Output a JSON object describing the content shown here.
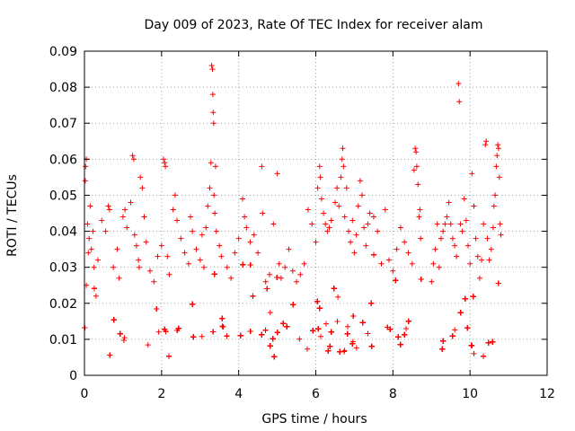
{
  "chart_data": {
    "type": "scatter",
    "title": "Day 009 of 2023, Rate Of TEC Index for receiver alam",
    "xlabel": "GPS time / hours",
    "ylabel": "ROTI / TECUs",
    "xlim": [
      0,
      12
    ],
    "ylim": [
      0,
      0.09
    ],
    "xticks": [
      0,
      2,
      4,
      6,
      8,
      10,
      12
    ],
    "xtick_labels": [
      "0",
      "2",
      "4",
      "6",
      "8",
      "10",
      "12"
    ],
    "yticks": [
      0,
      0.01,
      0.02,
      0.03,
      0.04,
      0.05,
      0.06,
      0.07,
      0.08,
      0.09
    ],
    "ytick_labels": [
      "0",
      "0.01",
      "0.02",
      "0.03",
      "0.04",
      "0.05",
      "0.06",
      "0.07",
      "0.08",
      "0.09"
    ],
    "grid": true,
    "marker": "+",
    "color": "#ff0000",
    "series": [
      {
        "name": "ROTI",
        "points": [
          [
            0.02,
            0.054
          ],
          [
            0.05,
            0.06
          ],
          [
            0.03,
            0.058
          ],
          [
            0.08,
            0.042
          ],
          [
            0.05,
            0.025
          ],
          [
            0.1,
            0.034
          ],
          [
            0.12,
            0.038
          ],
          [
            0.15,
            0.047
          ],
          [
            0.18,
            0.035
          ],
          [
            0.22,
            0.04
          ],
          [
            0.25,
            0.03
          ],
          [
            0.3,
            0.022
          ],
          [
            0.35,
            0.032
          ],
          [
            0.45,
            0.043
          ],
          [
            0.55,
            0.04
          ],
          [
            0.62,
            0.047
          ],
          [
            0.65,
            0.046
          ],
          [
            0.75,
            0.03
          ],
          [
            0.85,
            0.035
          ],
          [
            0.9,
            0.027
          ],
          [
            1.0,
            0.044
          ],
          [
            1.05,
            0.046
          ],
          [
            1.1,
            0.041
          ],
          [
            1.2,
            0.048
          ],
          [
            1.25,
            0.061
          ],
          [
            1.28,
            0.06
          ],
          [
            1.3,
            0.039
          ],
          [
            1.35,
            0.036
          ],
          [
            1.4,
            0.032
          ],
          [
            1.42,
            0.03
          ],
          [
            1.45,
            0.055
          ],
          [
            1.5,
            0.052
          ],
          [
            1.55,
            0.044
          ],
          [
            1.6,
            0.037
          ],
          [
            1.7,
            0.029
          ],
          [
            1.8,
            0.026
          ],
          [
            1.9,
            0.033
          ],
          [
            2.0,
            0.036
          ],
          [
            2.05,
            0.06
          ],
          [
            2.08,
            0.059
          ],
          [
            2.1,
            0.058
          ],
          [
            2.15,
            0.033
          ],
          [
            2.2,
            0.028
          ],
          [
            2.3,
            0.046
          ],
          [
            2.35,
            0.05
          ],
          [
            2.4,
            0.043
          ],
          [
            2.5,
            0.038
          ],
          [
            2.6,
            0.034
          ],
          [
            2.7,
            0.031
          ],
          [
            2.75,
            0.044
          ],
          [
            2.8,
            0.04
          ],
          [
            2.9,
            0.035
          ],
          [
            3.0,
            0.032
          ],
          [
            3.05,
            0.039
          ],
          [
            3.1,
            0.03
          ],
          [
            3.15,
            0.041
          ],
          [
            3.2,
            0.047
          ],
          [
            3.25,
            0.052
          ],
          [
            3.28,
            0.059
          ],
          [
            3.3,
            0.086
          ],
          [
            3.32,
            0.085
          ],
          [
            3.33,
            0.078
          ],
          [
            3.34,
            0.073
          ],
          [
            3.35,
            0.07
          ],
          [
            3.36,
            0.05
          ],
          [
            3.38,
            0.045
          ],
          [
            3.4,
            0.058
          ],
          [
            3.42,
            0.04
          ],
          [
            3.5,
            0.036
          ],
          [
            3.55,
            0.033
          ],
          [
            3.7,
            0.03
          ],
          [
            3.8,
            0.027
          ],
          [
            3.9,
            0.034
          ],
          [
            4.0,
            0.038
          ],
          [
            4.1,
            0.049
          ],
          [
            4.15,
            0.044
          ],
          [
            4.2,
            0.041
          ],
          [
            4.3,
            0.037
          ],
          [
            4.4,
            0.039
          ],
          [
            4.5,
            0.034
          ],
          [
            4.6,
            0.058
          ],
          [
            4.62,
            0.045
          ],
          [
            4.7,
            0.026
          ],
          [
            4.8,
            0.028
          ],
          [
            4.9,
            0.042
          ],
          [
            5.0,
            0.056
          ],
          [
            5.05,
            0.031
          ],
          [
            5.1,
            0.027
          ],
          [
            5.2,
            0.03
          ],
          [
            5.3,
            0.035
          ],
          [
            5.4,
            0.029
          ],
          [
            5.5,
            0.026
          ],
          [
            5.6,
            0.028
          ],
          [
            5.7,
            0.031
          ],
          [
            5.8,
            0.046
          ],
          [
            5.9,
            0.042
          ],
          [
            6.0,
            0.037
          ],
          [
            6.05,
            0.052
          ],
          [
            6.1,
            0.058
          ],
          [
            6.12,
            0.055
          ],
          [
            6.15,
            0.049
          ],
          [
            6.2,
            0.045
          ],
          [
            6.25,
            0.042
          ],
          [
            6.3,
            0.04
          ],
          [
            6.35,
            0.041
          ],
          [
            6.4,
            0.043
          ],
          [
            6.5,
            0.048
          ],
          [
            6.55,
            0.052
          ],
          [
            6.6,
            0.047
          ],
          [
            6.65,
            0.055
          ],
          [
            6.68,
            0.06
          ],
          [
            6.7,
            0.063
          ],
          [
            6.72,
            0.058
          ],
          [
            6.75,
            0.044
          ],
          [
            6.8,
            0.052
          ],
          [
            6.85,
            0.04
          ],
          [
            6.9,
            0.037
          ],
          [
            6.95,
            0.043
          ],
          [
            7.0,
            0.034
          ],
          [
            7.05,
            0.039
          ],
          [
            7.1,
            0.047
          ],
          [
            7.15,
            0.054
          ],
          [
            7.2,
            0.05
          ],
          [
            7.25,
            0.041
          ],
          [
            7.3,
            0.036
          ],
          [
            7.35,
            0.042
          ],
          [
            7.4,
            0.045
          ],
          [
            7.5,
            0.044
          ],
          [
            7.6,
            0.04
          ],
          [
            7.7,
            0.031
          ],
          [
            7.8,
            0.046
          ],
          [
            7.9,
            0.032
          ],
          [
            8.0,
            0.029
          ],
          [
            8.1,
            0.035
          ],
          [
            8.2,
            0.041
          ],
          [
            8.3,
            0.037
          ],
          [
            8.4,
            0.034
          ],
          [
            8.5,
            0.031
          ],
          [
            8.55,
            0.057
          ],
          [
            8.58,
            0.063
          ],
          [
            8.6,
            0.062
          ],
          [
            8.62,
            0.058
          ],
          [
            8.65,
            0.053
          ],
          [
            8.68,
            0.044
          ],
          [
            8.7,
            0.046
          ],
          [
            8.72,
            0.038
          ],
          [
            9.0,
            0.026
          ],
          [
            9.05,
            0.031
          ],
          [
            9.1,
            0.035
          ],
          [
            9.15,
            0.042
          ],
          [
            9.2,
            0.03
          ],
          [
            9.25,
            0.038
          ],
          [
            9.3,
            0.04
          ],
          [
            9.35,
            0.042
          ],
          [
            9.4,
            0.044
          ],
          [
            9.45,
            0.048
          ],
          [
            9.5,
            0.042
          ],
          [
            9.55,
            0.038
          ],
          [
            9.6,
            0.036
          ],
          [
            9.65,
            0.033
          ],
          [
            9.7,
            0.081
          ],
          [
            9.72,
            0.076
          ],
          [
            9.75,
            0.042
          ],
          [
            9.8,
            0.04
          ],
          [
            9.85,
            0.049
          ],
          [
            9.9,
            0.043
          ],
          [
            9.95,
            0.036
          ],
          [
            10.0,
            0.031
          ],
          [
            10.05,
            0.056
          ],
          [
            10.1,
            0.047
          ],
          [
            10.15,
            0.038
          ],
          [
            10.2,
            0.033
          ],
          [
            10.25,
            0.027
          ],
          [
            10.3,
            0.032
          ],
          [
            10.35,
            0.042
          ],
          [
            10.4,
            0.064
          ],
          [
            10.42,
            0.065
          ],
          [
            10.45,
            0.038
          ],
          [
            10.5,
            0.032
          ],
          [
            10.55,
            0.035
          ],
          [
            10.6,
            0.041
          ],
          [
            10.62,
            0.047
          ],
          [
            10.65,
            0.05
          ],
          [
            10.68,
            0.058
          ],
          [
            10.7,
            0.061
          ],
          [
            10.72,
            0.064
          ],
          [
            10.74,
            0.063
          ],
          [
            10.76,
            0.055
          ],
          [
            10.78,
            0.042
          ],
          [
            10.8,
            0.039
          ]
        ]
      }
    ]
  }
}
